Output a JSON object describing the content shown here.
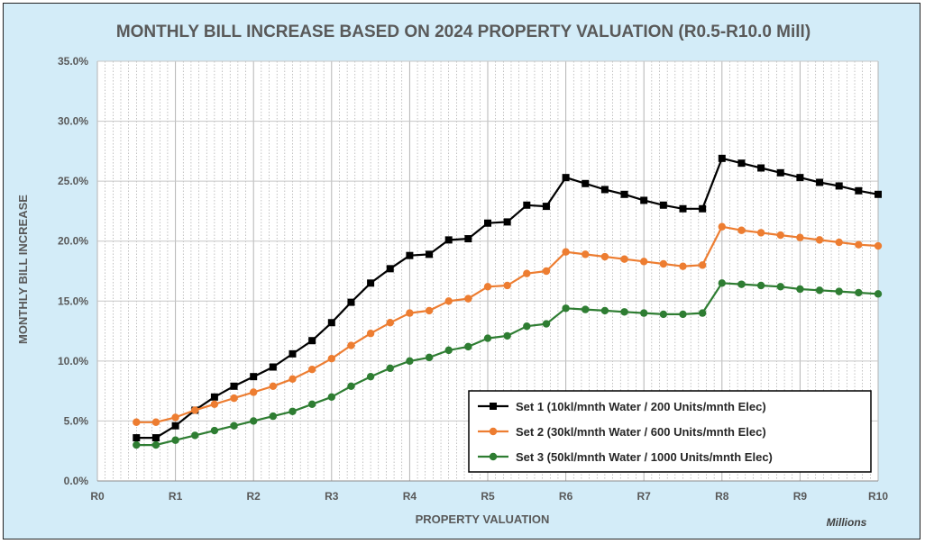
{
  "chart_data": {
    "type": "line",
    "title": "MONTHLY BILL INCREASE BASED ON 2024 PROPERTY VALUATION (R0.5-R10.0 Mill)",
    "xlabel": "PROPERTY VALUATION",
    "ylabel": "MONTHLY BILL INCREASE",
    "x_unit_label": "Millions",
    "xlim": [
      0,
      10
    ],
    "ylim": [
      0,
      35
    ],
    "x_ticks": [
      {
        "value": 0,
        "label": "R0"
      },
      {
        "value": 1,
        "label": "R1"
      },
      {
        "value": 2,
        "label": "R2"
      },
      {
        "value": 3,
        "label": "R3"
      },
      {
        "value": 4,
        "label": "R4"
      },
      {
        "value": 5,
        "label": "R5"
      },
      {
        "value": 6,
        "label": "R6"
      },
      {
        "value": 7,
        "label": "R7"
      },
      {
        "value": 8,
        "label": "R8"
      },
      {
        "value": 9,
        "label": "R9"
      },
      {
        "value": 10,
        "label": "R10"
      }
    ],
    "y_ticks": [
      {
        "value": 0,
        "label": "0.0%"
      },
      {
        "value": 5,
        "label": "5.0%"
      },
      {
        "value": 10,
        "label": "10.0%"
      },
      {
        "value": 15,
        "label": "15.0%"
      },
      {
        "value": 20,
        "label": "20.0%"
      },
      {
        "value": 25,
        "label": "25.0%"
      },
      {
        "value": 30,
        "label": "30.0%"
      },
      {
        "value": 35,
        "label": "35.0%"
      }
    ],
    "grid": true,
    "legend_position": "bottom-right",
    "x": [
      0.5,
      0.75,
      1.0,
      1.25,
      1.5,
      1.75,
      2.0,
      2.25,
      2.5,
      2.75,
      3.0,
      3.25,
      3.5,
      3.75,
      4.0,
      4.25,
      4.5,
      4.75,
      5.0,
      5.25,
      5.5,
      5.75,
      6.0,
      6.25,
      6.5,
      6.75,
      7.0,
      7.25,
      7.5,
      7.75,
      8.0,
      8.25,
      8.5,
      8.75,
      9.0,
      9.25,
      9.5,
      9.75,
      10.0
    ],
    "series": [
      {
        "name": "Set 1 (10kl/mnth Water / 200 Units/mnth Elec)",
        "color": "#000000",
        "marker": "square",
        "values": [
          3.6,
          3.6,
          4.6,
          5.9,
          7.0,
          7.9,
          8.7,
          9.5,
          10.6,
          11.7,
          13.2,
          14.9,
          16.5,
          17.7,
          18.8,
          18.9,
          20.1,
          20.2,
          21.5,
          21.6,
          23.0,
          22.9,
          25.3,
          24.8,
          24.3,
          23.9,
          23.4,
          23.0,
          22.7,
          22.7,
          26.9,
          26.5,
          26.1,
          25.7,
          25.3,
          24.9,
          24.6,
          24.2,
          23.9
        ]
      },
      {
        "name": "Set 2 (30kl/mnth Water / 600 Units/mnth Elec)",
        "color": "#ed7d31",
        "marker": "circle",
        "values": [
          4.9,
          4.9,
          5.3,
          5.9,
          6.4,
          6.9,
          7.4,
          7.9,
          8.5,
          9.3,
          10.2,
          11.3,
          12.3,
          13.2,
          14.0,
          14.2,
          15.0,
          15.2,
          16.2,
          16.3,
          17.3,
          17.5,
          19.1,
          18.9,
          18.7,
          18.5,
          18.3,
          18.1,
          17.9,
          18.0,
          21.2,
          20.9,
          20.7,
          20.5,
          20.3,
          20.1,
          19.9,
          19.7,
          19.6
        ]
      },
      {
        "name": "Set 3 (50kl/mnth Water / 1000 Units/mnth Elec)",
        "color": "#2e7d32",
        "marker": "circle",
        "values": [
          3.0,
          3.0,
          3.4,
          3.8,
          4.2,
          4.6,
          5.0,
          5.4,
          5.8,
          6.4,
          7.0,
          7.9,
          8.7,
          9.4,
          10.0,
          10.3,
          10.9,
          11.2,
          11.9,
          12.1,
          12.9,
          13.1,
          14.4,
          14.3,
          14.2,
          14.1,
          14.0,
          13.9,
          13.9,
          14.0,
          16.5,
          16.4,
          16.3,
          16.2,
          16.0,
          15.9,
          15.8,
          15.7,
          15.6
        ]
      }
    ]
  }
}
